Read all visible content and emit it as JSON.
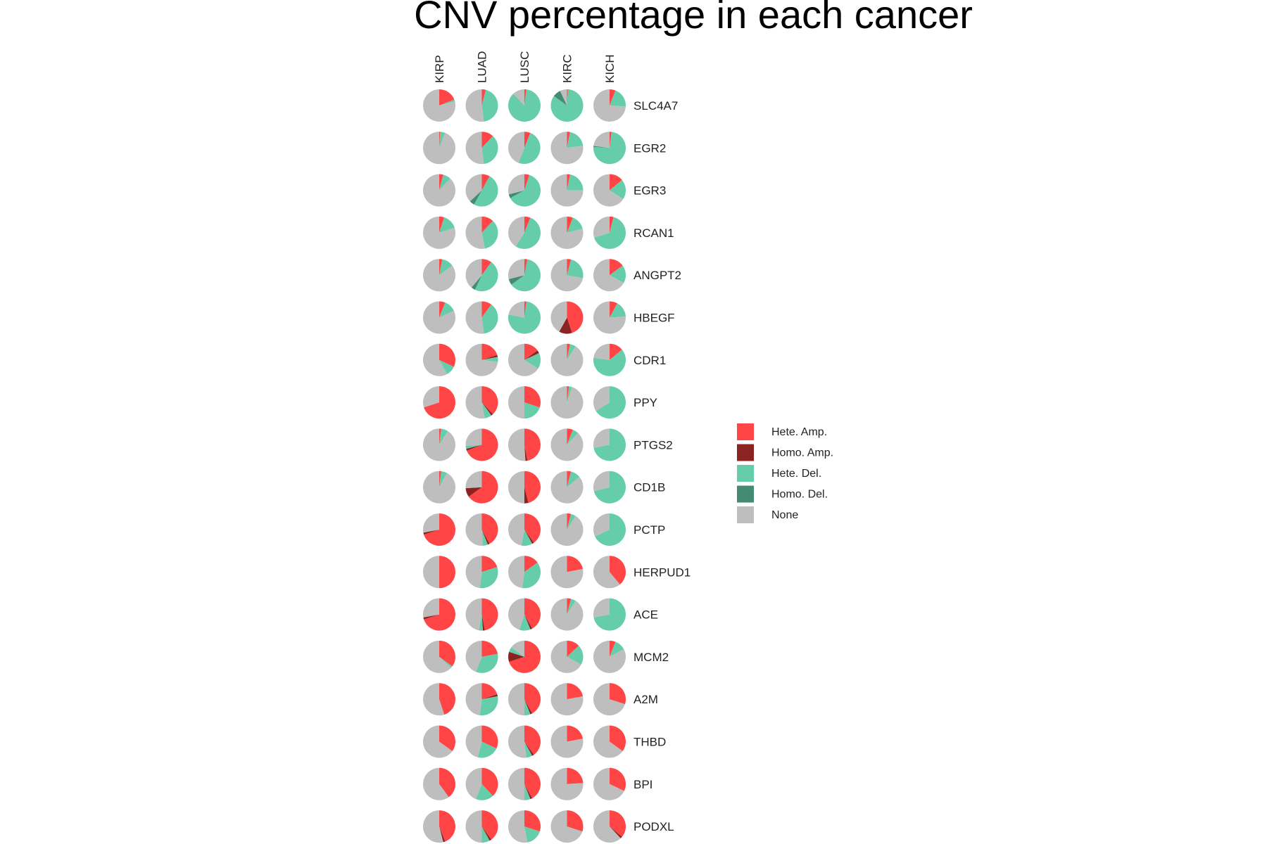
{
  "chart_data": {
    "type": "pie",
    "title": "CNV percentage in each cancer",
    "cancers": [
      "KIRP",
      "LUAD",
      "LUSC",
      "KIRC",
      "KICH"
    ],
    "genes": [
      "SLC4A7",
      "EGR2",
      "EGR3",
      "RCAN1",
      "ANGPT2",
      "HBEGF",
      "CDR1",
      "PPY",
      "PTGS2",
      "CD1B",
      "PCTP",
      "HERPUD1",
      "ACE",
      "MCM2",
      "A2M",
      "THBD",
      "BPI",
      "PODXL"
    ],
    "categories": [
      "Hete. Amp.",
      "Homo. Amp.",
      "Hete. Del.",
      "Homo. Del.",
      "None"
    ],
    "colors": {
      "Hete. Amp.": "#FF4545",
      "Homo. Amp.": "#8B2323",
      "Hete. Del.": "#66CDAA",
      "Homo. Del.": "#458B74",
      "None": "#BEBEBE"
    },
    "legend": {
      "position": "right",
      "items": [
        "Hete. Amp.",
        "Homo. Amp.",
        "Hete. Del.",
        "Homo. Del.",
        "None"
      ]
    },
    "values": {
      "SLC4A7": {
        "KIRP": [
          0.19,
          0.0,
          0.02,
          0.0,
          0.79
        ],
        "LUAD": [
          0.04,
          0.0,
          0.44,
          0.0,
          0.52
        ],
        "LUSC": [
          0.02,
          0.0,
          0.86,
          0.0,
          0.12
        ],
        "KIRC": [
          0.01,
          0.0,
          0.84,
          0.08,
          0.07
        ],
        "KICH": [
          0.06,
          0.0,
          0.2,
          0.0,
          0.74
        ]
      },
      "EGR2": {
        "KIRP": [
          0.01,
          0.0,
          0.05,
          0.0,
          0.94
        ],
        "LUAD": [
          0.12,
          0.0,
          0.36,
          0.0,
          0.52
        ],
        "LUSC": [
          0.06,
          0.0,
          0.5,
          0.0,
          0.44
        ],
        "KIRC": [
          0.03,
          0.0,
          0.2,
          0.0,
          0.77
        ],
        "KICH": [
          0.02,
          0.0,
          0.74,
          0.01,
          0.23
        ]
      },
      "EGR3": {
        "KIRP": [
          0.04,
          0.0,
          0.08,
          0.0,
          0.88
        ],
        "LUAD": [
          0.08,
          0.0,
          0.5,
          0.05,
          0.37
        ],
        "LUSC": [
          0.05,
          0.0,
          0.62,
          0.04,
          0.29
        ],
        "KIRC": [
          0.03,
          0.0,
          0.22,
          0.0,
          0.75
        ],
        "KICH": [
          0.14,
          0.0,
          0.2,
          0.0,
          0.66
        ]
      },
      "RCAN1": {
        "KIRP": [
          0.05,
          0.0,
          0.15,
          0.0,
          0.8
        ],
        "LUAD": [
          0.12,
          0.0,
          0.35,
          0.0,
          0.53
        ],
        "LUSC": [
          0.06,
          0.0,
          0.53,
          0.0,
          0.41
        ],
        "KIRC": [
          0.06,
          0.0,
          0.15,
          0.0,
          0.79
        ],
        "KICH": [
          0.04,
          0.0,
          0.66,
          0.0,
          0.3
        ]
      },
      "ANGPT2": {
        "KIRP": [
          0.03,
          0.0,
          0.12,
          0.0,
          0.85
        ],
        "LUAD": [
          0.1,
          0.0,
          0.47,
          0.04,
          0.39
        ],
        "LUSC": [
          0.03,
          0.0,
          0.62,
          0.06,
          0.29
        ],
        "KIRC": [
          0.04,
          0.0,
          0.24,
          0.0,
          0.72
        ],
        "KICH": [
          0.15,
          0.0,
          0.18,
          0.0,
          0.67
        ]
      },
      "HBEGF": {
        "KIRP": [
          0.06,
          0.0,
          0.12,
          0.0,
          0.82
        ],
        "LUAD": [
          0.1,
          0.0,
          0.38,
          0.0,
          0.52
        ],
        "LUSC": [
          0.02,
          0.0,
          0.76,
          0.0,
          0.22
        ],
        "KIRC": [
          0.45,
          0.13,
          0.0,
          0.0,
          0.42
        ],
        "KICH": [
          0.08,
          0.0,
          0.16,
          0.0,
          0.76
        ]
      },
      "CDR1": {
        "KIRP": [
          0.32,
          0.0,
          0.1,
          0.0,
          0.58
        ],
        "LUAD": [
          0.2,
          0.02,
          0.05,
          0.0,
          0.73
        ],
        "LUSC": [
          0.15,
          0.03,
          0.16,
          0.0,
          0.66
        ],
        "KIRC": [
          0.03,
          0.0,
          0.06,
          0.0,
          0.91
        ],
        "KICH": [
          0.14,
          0.0,
          0.63,
          0.0,
          0.23
        ]
      },
      "PPY": {
        "KIRP": [
          0.7,
          0.0,
          0.0,
          0.0,
          0.3
        ],
        "LUAD": [
          0.38,
          0.02,
          0.07,
          0.0,
          0.53
        ],
        "LUSC": [
          0.3,
          0.0,
          0.2,
          0.0,
          0.5
        ],
        "KIRC": [
          0.02,
          0.0,
          0.03,
          0.0,
          0.95
        ],
        "KICH": [
          0.0,
          0.0,
          0.66,
          0.0,
          0.34
        ]
      },
      "PTGS2": {
        "KIRP": [
          0.02,
          0.0,
          0.07,
          0.0,
          0.91
        ],
        "LUAD": [
          0.69,
          0.02,
          0.03,
          0.0,
          0.26
        ],
        "LUSC": [
          0.47,
          0.02,
          0.0,
          0.0,
          0.51
        ],
        "KIRC": [
          0.06,
          0.0,
          0.06,
          0.0,
          0.88
        ],
        "KICH": [
          0.0,
          0.0,
          0.72,
          0.0,
          0.28
        ]
      },
      "CD1B": {
        "KIRP": [
          0.02,
          0.0,
          0.06,
          0.0,
          0.92
        ],
        "LUAD": [
          0.65,
          0.09,
          0.0,
          0.0,
          0.26
        ],
        "LUSC": [
          0.46,
          0.04,
          0.0,
          0.0,
          0.5
        ],
        "KIRC": [
          0.04,
          0.0,
          0.1,
          0.0,
          0.86
        ],
        "KICH": [
          0.0,
          0.0,
          0.71,
          0.0,
          0.29
        ]
      },
      "PCTP": {
        "KIRP": [
          0.7,
          0.02,
          0.0,
          0.0,
          0.28
        ],
        "LUAD": [
          0.42,
          0.02,
          0.05,
          0.0,
          0.51
        ],
        "LUSC": [
          0.4,
          0.02,
          0.11,
          0.0,
          0.47
        ],
        "KIRC": [
          0.04,
          0.0,
          0.05,
          0.0,
          0.91
        ],
        "KICH": [
          0.0,
          0.0,
          0.68,
          0.0,
          0.32
        ]
      },
      "HERPUD1": {
        "KIRP": [
          0.5,
          0.0,
          0.0,
          0.0,
          0.5
        ],
        "LUAD": [
          0.2,
          0.0,
          0.32,
          0.0,
          0.48
        ],
        "LUSC": [
          0.15,
          0.0,
          0.37,
          0.0,
          0.48
        ],
        "KIRC": [
          0.22,
          0.0,
          0.0,
          0.0,
          0.78
        ],
        "KICH": [
          0.39,
          0.0,
          0.0,
          0.0,
          0.61
        ]
      },
      "ACE": {
        "KIRP": [
          0.7,
          0.02,
          0.0,
          0.0,
          0.28
        ],
        "LUAD": [
          0.47,
          0.02,
          0.04,
          0.0,
          0.47
        ],
        "LUSC": [
          0.42,
          0.02,
          0.11,
          0.0,
          0.45
        ],
        "KIRC": [
          0.04,
          0.0,
          0.05,
          0.0,
          0.91
        ],
        "KICH": [
          0.0,
          0.0,
          0.72,
          0.0,
          0.28
        ]
      },
      "MCM2": {
        "KIRP": [
          0.35,
          0.0,
          0.02,
          0.0,
          0.63
        ],
        "LUAD": [
          0.22,
          0.0,
          0.34,
          0.0,
          0.44
        ],
        "LUSC": [
          0.7,
          0.1,
          0.05,
          0.0,
          0.15
        ],
        "KIRC": [
          0.13,
          0.0,
          0.2,
          0.0,
          0.67
        ],
        "KICH": [
          0.06,
          0.0,
          0.11,
          0.0,
          0.83
        ]
      },
      "A2M": {
        "KIRP": [
          0.45,
          0.0,
          0.0,
          0.0,
          0.55
        ],
        "LUAD": [
          0.2,
          0.02,
          0.3,
          0.0,
          0.48
        ],
        "LUSC": [
          0.42,
          0.02,
          0.06,
          0.0,
          0.5
        ],
        "KIRC": [
          0.22,
          0.0,
          0.0,
          0.0,
          0.78
        ],
        "KICH": [
          0.3,
          0.0,
          0.0,
          0.0,
          0.7
        ]
      },
      "THBD": {
        "KIRP": [
          0.35,
          0.0,
          0.0,
          0.0,
          0.65
        ],
        "LUAD": [
          0.32,
          0.0,
          0.22,
          0.0,
          0.46
        ],
        "LUSC": [
          0.4,
          0.02,
          0.06,
          0.0,
          0.52
        ],
        "KIRC": [
          0.22,
          0.0,
          0.0,
          0.0,
          0.78
        ],
        "KICH": [
          0.35,
          0.0,
          0.0,
          0.0,
          0.65
        ]
      },
      "BPI": {
        "KIRP": [
          0.4,
          0.0,
          0.0,
          0.0,
          0.6
        ],
        "LUAD": [
          0.38,
          0.0,
          0.18,
          0.0,
          0.44
        ],
        "LUSC": [
          0.42,
          0.02,
          0.06,
          0.0,
          0.5
        ],
        "KIRC": [
          0.24,
          0.0,
          0.0,
          0.0,
          0.76
        ],
        "KICH": [
          0.32,
          0.0,
          0.0,
          0.0,
          0.68
        ]
      },
      "PODXL": {
        "KIRP": [
          0.44,
          0.02,
          0.0,
          0.0,
          0.54
        ],
        "LUAD": [
          0.4,
          0.02,
          0.08,
          0.0,
          0.5
        ],
        "LUSC": [
          0.3,
          0.0,
          0.17,
          0.0,
          0.53
        ],
        "KIRC": [
          0.3,
          0.0,
          0.0,
          0.0,
          0.7
        ],
        "KICH": [
          0.36,
          0.02,
          0.0,
          0.0,
          0.62
        ]
      }
    }
  }
}
